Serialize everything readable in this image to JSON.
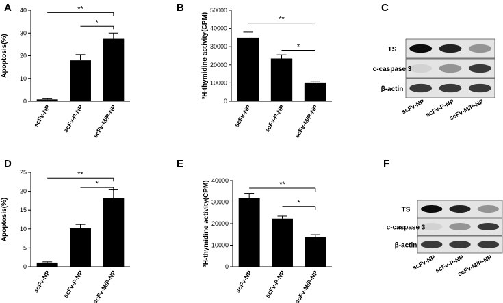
{
  "chart_data": [
    {
      "type": "bar",
      "panel": "A",
      "ylabel": "Apoptosis(%)",
      "categories": [
        "scFv-NP",
        "scFv-P-NP",
        "scFv-M/P-NP"
      ],
      "values": [
        0.8,
        18,
        27.5
      ],
      "errors": [
        0.3,
        2.5,
        2.5
      ],
      "color": "#000000",
      "ylim": [
        0,
        40
      ],
      "yticks": [
        0,
        10,
        20,
        30,
        40
      ],
      "brackets": [
        {
          "label": "**",
          "from": 0,
          "to": 2,
          "y": 39
        },
        {
          "label": "*",
          "from": 1,
          "to": 2,
          "y": 33
        }
      ]
    },
    {
      "type": "bar",
      "panel": "B",
      "ylabel": "³H-thymidine activity(CPM)",
      "categories": [
        "scFv-NP",
        "scFv-P-NP",
        "scFv-M/P-NP"
      ],
      "values": [
        35000,
        23500,
        10200
      ],
      "errors": [
        3000,
        2000,
        800
      ],
      "color": "#000000",
      "ylim": [
        0,
        50000
      ],
      "yticks": [
        0,
        10000,
        20000,
        30000,
        40000,
        50000
      ],
      "brackets": [
        {
          "label": "**",
          "from": 0,
          "to": 2,
          "y": 43000
        },
        {
          "label": "*",
          "from": 1,
          "to": 2,
          "y": 28000
        }
      ]
    },
    {
      "type": "bar",
      "panel": "D",
      "ylabel": "Apoptosis(%)",
      "categories": [
        "scFv-NP",
        "scFv-P-NP",
        "scFv-M/P-NP"
      ],
      "values": [
        1.1,
        10.2,
        18.2
      ],
      "errors": [
        0.2,
        1,
        2.2
      ],
      "color": "#000000",
      "ylim": [
        0,
        25
      ],
      "yticks": [
        0,
        5,
        10,
        15,
        20,
        25
      ],
      "brackets": [
        {
          "label": "**",
          "from": 0,
          "to": 2,
          "y": 23.5
        },
        {
          "label": "*",
          "from": 1,
          "to": 2,
          "y": 21
        }
      ]
    },
    {
      "type": "bar",
      "panel": "E",
      "ylabel": "³H-thymidine activity(CPM)",
      "categories": [
        "scFv-NP",
        "scFv-P-NP",
        "scFv-M/P-NP"
      ],
      "values": [
        31800,
        22300,
        13700
      ],
      "errors": [
        2300,
        1200,
        1200
      ],
      "color": "#000000",
      "ylim": [
        0,
        40000
      ],
      "yticks": [
        0,
        10000,
        20000,
        30000,
        40000
      ],
      "brackets": [
        {
          "label": "**",
          "from": 0,
          "to": 2,
          "y": 36500
        },
        {
          "label": "*",
          "from": 1,
          "to": 2,
          "y": 28000
        }
      ]
    }
  ],
  "blots": [
    {
      "panel": "C",
      "rows": [
        "TS",
        "c-caspase 3",
        "β-actin"
      ],
      "lanes": [
        "scFv-NP",
        "scFv-P-NP",
        "scFv-M/P-NP"
      ]
    },
    {
      "panel": "F",
      "rows": [
        "TS",
        "c-caspase 3",
        "β-actin"
      ],
      "lanes": [
        "scFv-NP",
        "scFv-P-NP",
        "scFv-M/P-NP"
      ]
    }
  ]
}
